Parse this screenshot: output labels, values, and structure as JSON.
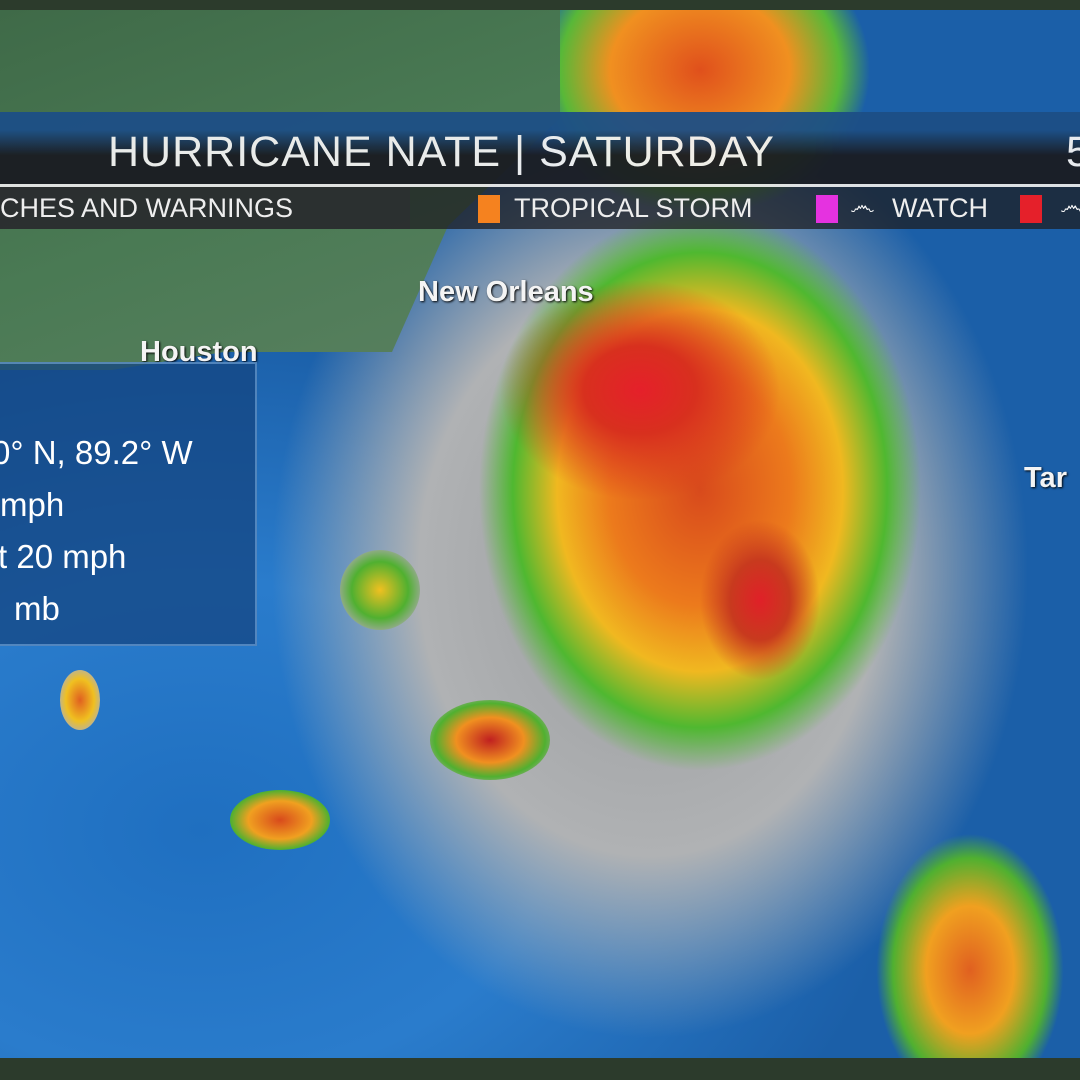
{
  "banner": {
    "title": "HURRICANE NATE | SATURDAY",
    "title_cut": "5"
  },
  "legend": {
    "label": "CHES AND WARNINGS",
    "items": [
      {
        "color": "#f5821f",
        "label": "TROPICAL STORM"
      },
      {
        "color": "#e532e0",
        "icon": "hurricane-icon",
        "label": "WATCH"
      },
      {
        "color": "#e5202a",
        "icon": "hurricane-icon",
        "label": ""
      }
    ]
  },
  "cities": {
    "new_orleans": "New Orleans",
    "houston": "Houston",
    "tampa": "Tar"
  },
  "info": {
    "position": "0° N, 89.2° W",
    "winds": "mph",
    "movement": "t 20 mph",
    "pressure": "mb"
  },
  "colors": {
    "banner_blue": "#1d4f86",
    "ocean": "#2a7ccc",
    "land": "#4a7a54"
  }
}
